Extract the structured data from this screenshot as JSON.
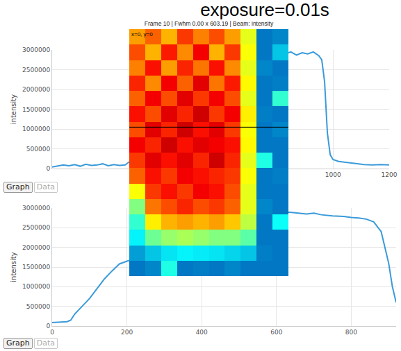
{
  "title": "exposure=0.01s",
  "frame_caption": "Frame 10 | Fwhm 0.00 x 603.19 | Beam: intensity",
  "cursor_label": "x=0, y=0",
  "buttons": [
    [
      "Graph",
      "Data"
    ],
    [
      "Graph",
      "Data"
    ]
  ],
  "image": {
    "zlim": [
      0,
      1
    ],
    "cells": [
      [
        0.72,
        0.78,
        0.7,
        0.82,
        0.75,
        0.8,
        0.72,
        0.6,
        0.2,
        0.22
      ],
      [
        0.8,
        0.7,
        0.85,
        0.74,
        0.88,
        0.7,
        0.82,
        0.62,
        0.2,
        0.3
      ],
      [
        0.75,
        0.86,
        0.72,
        0.84,
        0.76,
        0.86,
        0.74,
        0.6,
        0.22,
        0.2
      ],
      [
        0.84,
        0.74,
        0.88,
        0.78,
        0.9,
        0.76,
        0.85,
        0.63,
        0.2,
        0.21
      ],
      [
        0.78,
        0.88,
        0.8,
        0.9,
        0.82,
        0.88,
        0.8,
        0.6,
        0.2,
        0.42
      ],
      [
        0.86,
        0.8,
        0.9,
        0.84,
        0.92,
        0.82,
        0.88,
        0.64,
        0.21,
        0.2
      ],
      [
        0.8,
        0.9,
        0.84,
        0.92,
        0.86,
        0.9,
        0.82,
        0.62,
        0.2,
        0.22
      ],
      [
        0.88,
        0.84,
        0.92,
        0.86,
        0.9,
        0.88,
        0.86,
        0.63,
        0.2,
        0.2
      ],
      [
        0.82,
        0.9,
        0.86,
        0.9,
        0.84,
        0.92,
        0.84,
        0.6,
        0.4,
        0.2
      ],
      [
        0.78,
        0.86,
        0.82,
        0.88,
        0.86,
        0.84,
        0.82,
        0.62,
        0.2,
        0.21
      ],
      [
        0.62,
        0.82,
        0.86,
        0.82,
        0.88,
        0.86,
        0.8,
        0.6,
        0.2,
        0.2
      ],
      [
        0.5,
        0.76,
        0.8,
        0.84,
        0.8,
        0.82,
        0.78,
        0.6,
        0.22,
        0.2
      ],
      [
        0.42,
        0.64,
        0.7,
        0.72,
        0.7,
        0.72,
        0.68,
        0.56,
        0.2,
        0.38
      ],
      [
        0.36,
        0.48,
        0.52,
        0.54,
        0.52,
        0.5,
        0.5,
        0.46,
        0.2,
        0.2
      ],
      [
        0.25,
        0.3,
        0.34,
        0.36,
        0.35,
        0.34,
        0.32,
        0.3,
        0.21,
        0.2
      ],
      [
        0.2,
        0.22,
        0.4,
        0.2,
        0.21,
        0.2,
        0.22,
        0.2,
        0.2,
        0.2
      ]
    ]
  },
  "chart_data": [
    {
      "type": "line",
      "y_label": "intensity",
      "color": "#3a9ad9",
      "grid": true,
      "x": [
        0,
        20,
        40,
        60,
        80,
        100,
        120,
        140,
        160,
        180,
        200,
        220,
        240,
        260,
        795,
        820,
        850,
        870,
        890,
        910,
        930,
        950,
        960,
        970,
        980,
        990,
        1000,
        1020,
        1050,
        1080,
        1110,
        1140,
        1170,
        1200
      ],
      "values": [
        40000,
        60000,
        90000,
        70000,
        100000,
        60000,
        110000,
        80000,
        90000,
        120000,
        70000,
        100000,
        80000,
        90000,
        2900000,
        2880000,
        2950000,
        2870000,
        2930000,
        2900000,
        2950000,
        2850000,
        2750000,
        2200000,
        900000,
        350000,
        230000,
        180000,
        150000,
        120000,
        100000,
        90000,
        100000,
        90000
      ],
      "xlim": [
        0,
        1200
      ],
      "xticks": [
        1000,
        1200
      ],
      "ylim": [
        0,
        3000000
      ],
      "yticks": [
        0,
        500000,
        1000000,
        1500000,
        2000000,
        2500000,
        3000000
      ]
    },
    {
      "type": "line",
      "y_label": "intensity",
      "color": "#3a9ad9",
      "grid": true,
      "x": [
        0,
        20,
        40,
        50,
        60,
        70,
        80,
        90,
        100,
        120,
        140,
        160,
        180,
        200,
        630,
        650,
        680,
        700,
        720,
        750,
        780,
        800,
        820,
        840,
        860,
        880,
        900,
        910,
        920
      ],
      "values": [
        90000,
        100000,
        110000,
        150000,
        300000,
        400000,
        500000,
        600000,
        700000,
        950000,
        1200000,
        1400000,
        1580000,
        1650000,
        2900000,
        2880000,
        2850000,
        2870000,
        2830000,
        2800000,
        2790000,
        2760000,
        2750000,
        2720000,
        2650000,
        2400000,
        1600000,
        1000000,
        600000
      ],
      "xlim": [
        0,
        920
      ],
      "xticks": [
        0,
        200,
        400,
        600,
        800
      ],
      "ylim": [
        0,
        3000000
      ],
      "yticks": [
        0,
        500000,
        1000000,
        1500000,
        2000000,
        2500000,
        3000000
      ]
    }
  ]
}
